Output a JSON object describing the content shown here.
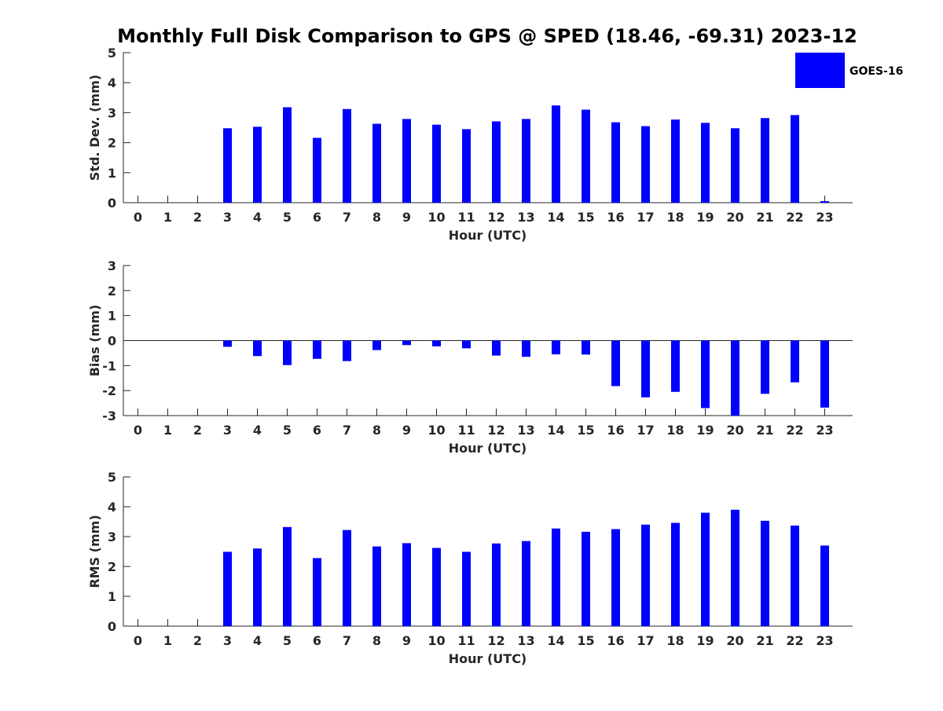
{
  "figure": {
    "title": "Monthly Full Disk Comparison to GPS @ SPED (18.46, -69.31) 2023-12",
    "legend": {
      "label": "GOES-16",
      "color": "#0000ff",
      "placement": "top-right"
    }
  },
  "chart_data": [
    {
      "type": "bar",
      "ylabel": "Std. Dev. (mm)",
      "xlabel": "Hour (UTC)",
      "ylim": [
        0,
        5
      ],
      "yticks": [
        0,
        1,
        2,
        3,
        4,
        5
      ],
      "categories": [
        "0",
        "1",
        "2",
        "3",
        "4",
        "5",
        "6",
        "7",
        "8",
        "9",
        "10",
        "11",
        "12",
        "13",
        "14",
        "15",
        "16",
        "17",
        "18",
        "19",
        "20",
        "21",
        "22",
        "23"
      ],
      "series": [
        {
          "name": "GOES-16",
          "color": "#0000ff",
          "values": [
            null,
            null,
            null,
            2.48,
            2.53,
            3.18,
            2.16,
            3.12,
            2.63,
            2.79,
            2.6,
            2.45,
            2.71,
            2.79,
            3.24,
            3.1,
            2.68,
            2.55,
            2.77,
            2.66,
            2.48,
            2.82,
            2.92,
            0.05
          ]
        }
      ],
      "grid": false
    },
    {
      "type": "bar",
      "ylabel": "Bias (mm)",
      "xlabel": "Hour (UTC)",
      "ylim": [
        -3,
        3
      ],
      "yticks": [
        -3,
        -2,
        -1,
        0,
        1,
        2,
        3
      ],
      "categories": [
        "0",
        "1",
        "2",
        "3",
        "4",
        "5",
        "6",
        "7",
        "8",
        "9",
        "10",
        "11",
        "12",
        "13",
        "14",
        "15",
        "16",
        "17",
        "18",
        "19",
        "20",
        "21",
        "22",
        "23"
      ],
      "series": [
        {
          "name": "GOES-16",
          "color": "#0000ff",
          "values": [
            null,
            null,
            null,
            -0.25,
            -0.62,
            -0.98,
            -0.73,
            -0.82,
            -0.38,
            -0.18,
            -0.23,
            -0.31,
            -0.6,
            -0.65,
            -0.55,
            -0.56,
            -1.82,
            -2.27,
            -2.05,
            -2.7,
            -3.0,
            -2.13,
            -1.67,
            -2.68
          ]
        }
      ],
      "grid": false
    },
    {
      "type": "bar",
      "ylabel": "RMS (mm)",
      "xlabel": "Hour (UTC)",
      "ylim": [
        0,
        5
      ],
      "yticks": [
        0,
        1,
        2,
        3,
        4,
        5
      ],
      "categories": [
        "0",
        "1",
        "2",
        "3",
        "4",
        "5",
        "6",
        "7",
        "8",
        "9",
        "10",
        "11",
        "12",
        "13",
        "14",
        "15",
        "16",
        "17",
        "18",
        "19",
        "20",
        "21",
        "22",
        "23"
      ],
      "series": [
        {
          "name": "GOES-16",
          "color": "#0000ff",
          "values": [
            null,
            null,
            null,
            2.49,
            2.6,
            3.32,
            2.28,
            3.22,
            2.67,
            2.78,
            2.62,
            2.49,
            2.77,
            2.85,
            3.27,
            3.16,
            3.25,
            3.4,
            3.46,
            3.8,
            3.9,
            3.53,
            3.37,
            2.7
          ]
        }
      ],
      "grid": false
    }
  ]
}
